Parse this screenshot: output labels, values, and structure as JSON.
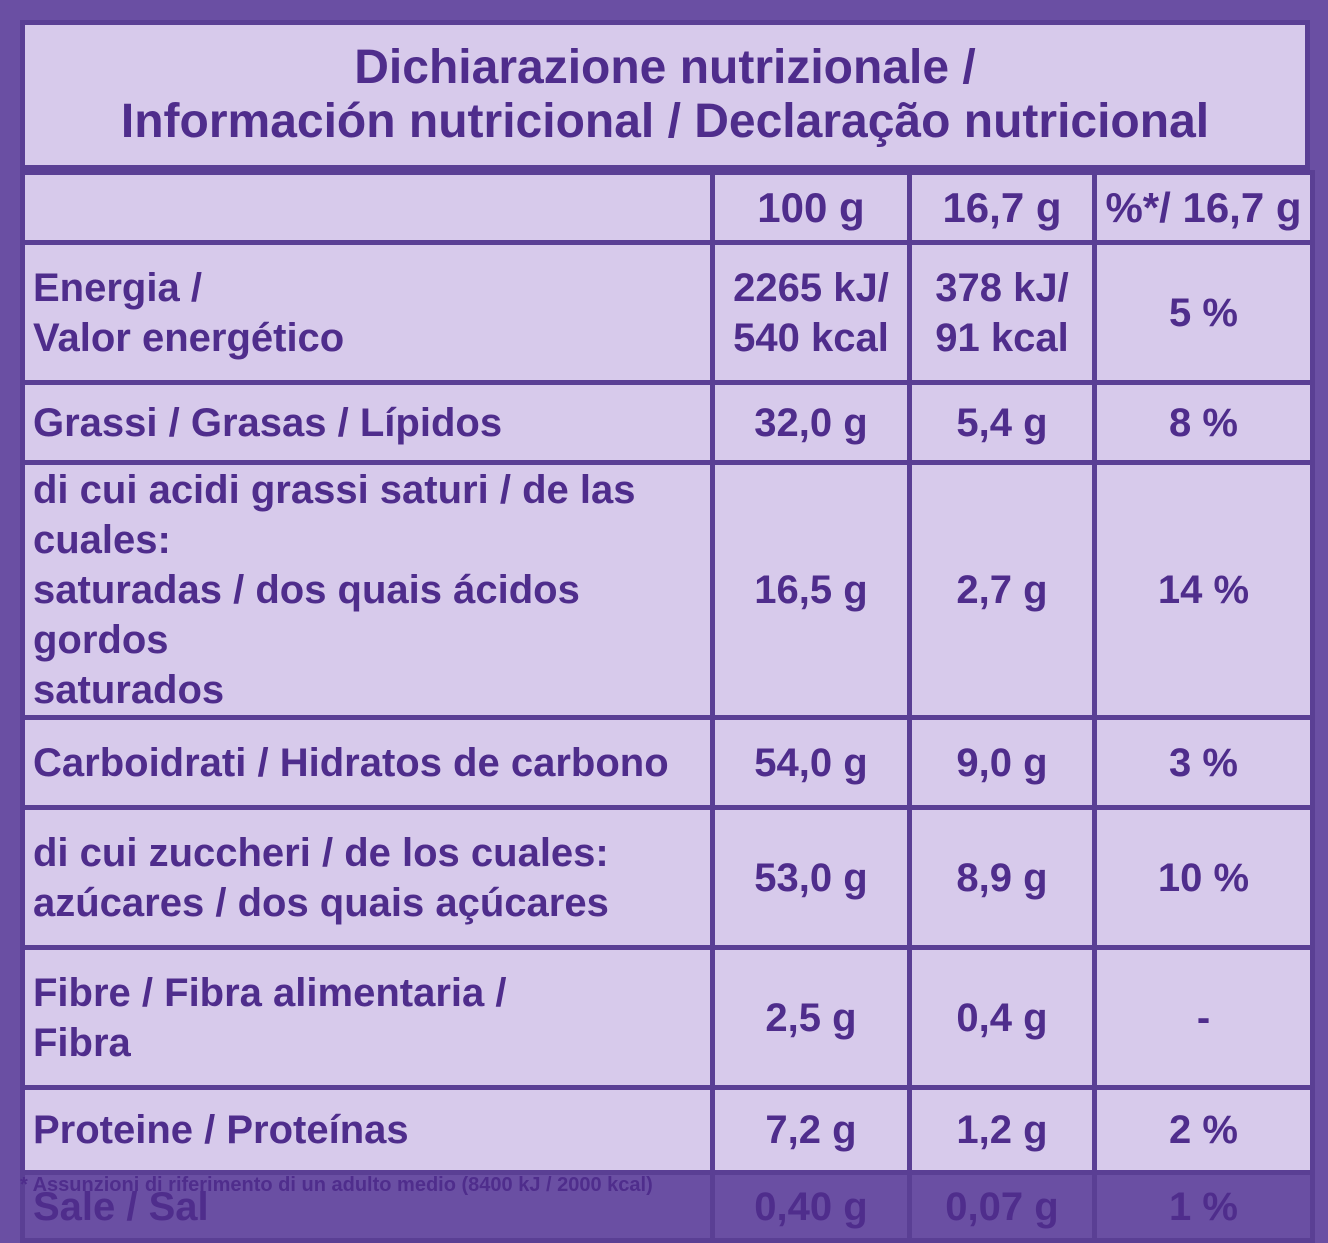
{
  "title": {
    "line1": "Dichiarazione nutrizionale /",
    "line2": "Información nutricional / Declaração nutricional"
  },
  "columns": [
    "100 g",
    "16,7 g",
    "%*/ 16,7 g"
  ],
  "rows": [
    {
      "label_lines": [
        "Energia /",
        "Valor energético"
      ],
      "per100": [
        "2265 kJ/",
        "540 kcal"
      ],
      "perServing": [
        "378 kJ/",
        "91 kcal"
      ],
      "ri": "5 %"
    },
    {
      "label_lines": [
        "Grassi / Grasas / Lípidos"
      ],
      "per100": [
        "32,0 g"
      ],
      "perServing": [
        "5,4 g"
      ],
      "ri": "8 %"
    },
    {
      "label_lines": [
        "di cui acidi grassi saturi / de las cuales:",
        "saturadas / dos quais ácidos gordos",
        "saturados"
      ],
      "per100": [
        "16,5 g"
      ],
      "perServing": [
        "2,7 g"
      ],
      "ri": "14 %"
    },
    {
      "label_lines": [
        "Carboidrati / Hidratos de carbono"
      ],
      "per100": [
        "54,0 g"
      ],
      "perServing": [
        "9,0 g"
      ],
      "ri": "3 %"
    },
    {
      "label_lines": [
        "di cui zuccheri / de los cuales:",
        "azúcares / dos quais açúcares"
      ],
      "per100": [
        "53,0 g"
      ],
      "perServing": [
        "8,9 g"
      ],
      "ri": "10 %"
    },
    {
      "label_lines": [
        "Fibre / Fibra alimentaria /",
        "Fibra"
      ],
      "per100": [
        "2,5 g"
      ],
      "perServing": [
        "0,4 g"
      ],
      "ri": "-"
    },
    {
      "label_lines": [
        "Proteine / Proteínas"
      ],
      "per100": [
        "7,2 g"
      ],
      "perServing": [
        "1,2 g"
      ],
      "ri": "2 %"
    },
    {
      "label_lines": [
        "Sale / Sal"
      ],
      "per100": [
        "0,40 g"
      ],
      "perServing": [
        "0,07 g"
      ],
      "ri": "1 %"
    }
  ],
  "footnote": "* Assunzioni di riferimento di un adulto medio (8400 kJ / 2000 kcal)"
}
